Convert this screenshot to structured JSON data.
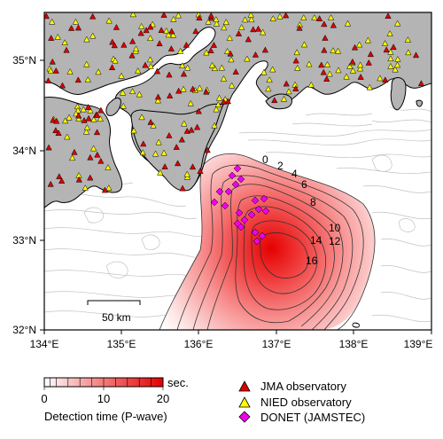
{
  "map": {
    "lon_labels": [
      "134°E",
      "135°E",
      "136°E",
      "137°E",
      "138°E",
      "139°E"
    ],
    "lat_labels": [
      "35°N",
      "34°N",
      "33°N",
      "32°N"
    ],
    "scale_bar_label": "50 km",
    "contour_labels": [
      "0",
      "2",
      "4",
      "6",
      "8",
      "10",
      "12",
      "14",
      "16",
      "0"
    ],
    "colors": {
      "land": "#b4b4b4",
      "sea": "#ffffff",
      "jma": "#dd0000",
      "nied": "#ffff00",
      "donet": "#ee00ee",
      "heat_max": "#e60000"
    }
  },
  "colorbar": {
    "ticks": [
      "0",
      "10",
      "20"
    ],
    "unit": "sec.",
    "title": "Detection time (P-wave)"
  },
  "legend": {
    "items": [
      {
        "label": "JMA observatory",
        "icon": "red-triangle"
      },
      {
        "label": "NIED observatory",
        "icon": "yellow-triangle"
      },
      {
        "label": "DONET (JAMSTEC)",
        "icon": "magenta-diamond"
      }
    ]
  }
}
